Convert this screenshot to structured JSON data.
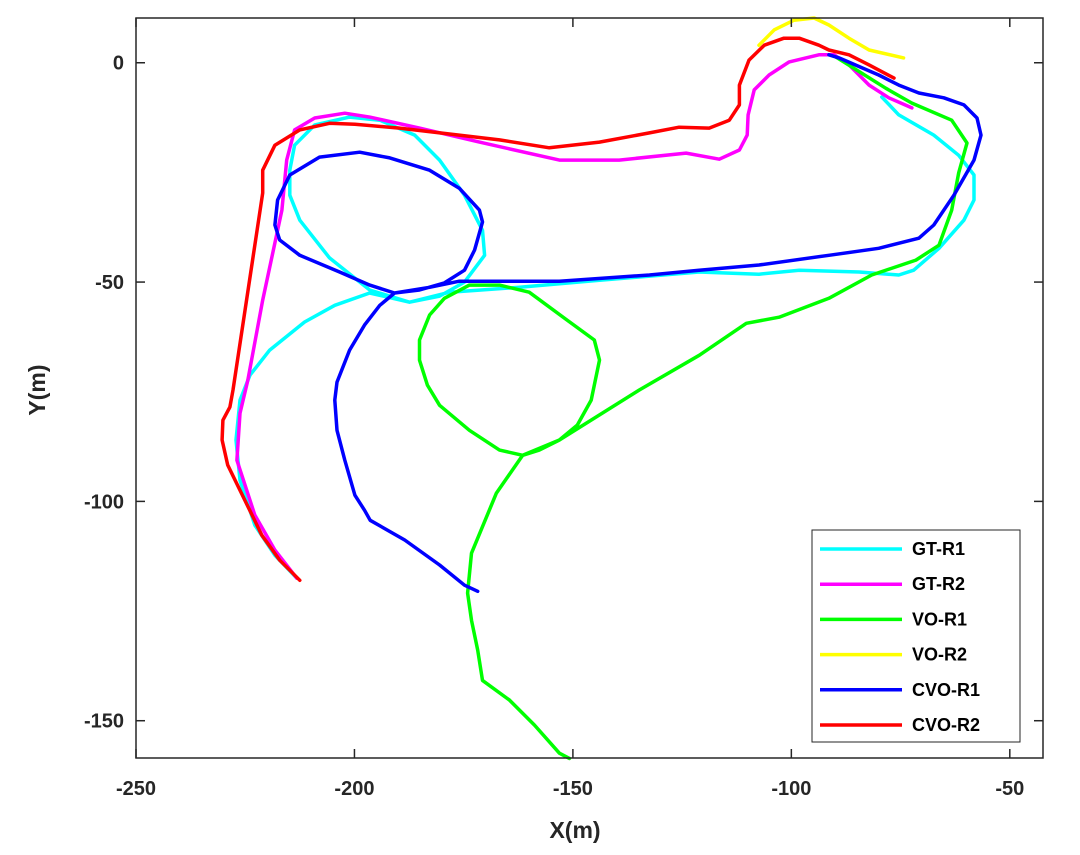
{
  "chart_data": {
    "type": "line",
    "title": "",
    "xlabel": "X(m)",
    "ylabel": "Y(m)",
    "xlim": [
      -250,
      -42.4
    ],
    "ylim": [
      -158.5,
      10.2
    ],
    "xticks": [
      -250,
      -200,
      -150,
      -100,
      -50
    ],
    "yticks": [
      0,
      -50,
      -100,
      -150
    ],
    "xtick_labels": [
      "-250",
      "-200",
      "-150",
      "-100",
      "-50"
    ],
    "ytick_labels": [
      "0",
      "-50",
      "-100",
      "-150"
    ],
    "grid": false,
    "legend_position": "bottom-right",
    "series": [
      {
        "name": "GT-R1",
        "color": "#00ffff",
        "points": [
          [
            -213.2,
            -117.5
          ],
          [
            -218.2,
            -112.3
          ],
          [
            -222.8,
            -105.4
          ],
          [
            -226.2,
            -95.2
          ],
          [
            -227.1,
            -86.0
          ],
          [
            -226.2,
            -76.9
          ],
          [
            -223.9,
            -71.2
          ],
          [
            -219.4,
            -65.5
          ],
          [
            -211.4,
            -59.1
          ],
          [
            -204.5,
            -55.3
          ],
          [
            -196.5,
            -52.5
          ],
          [
            -187.4,
            -54.6
          ],
          [
            -180.5,
            -53.2
          ],
          [
            -174.8,
            -50.0
          ],
          [
            -170.2,
            -43.9
          ],
          [
            -170.7,
            -38.2
          ],
          [
            -174.8,
            -30.2
          ],
          [
            -180.5,
            -22.2
          ],
          [
            -186.2,
            -16.5
          ],
          [
            -194.2,
            -13.1
          ],
          [
            -201.1,
            -12.4
          ],
          [
            -209.1,
            -14.2
          ],
          [
            -213.7,
            -18.8
          ],
          [
            -214.8,
            -24.5
          ],
          [
            -214.8,
            -30.2
          ],
          [
            -212.5,
            -35.9
          ],
          [
            -205.7,
            -44.5
          ],
          [
            -196.5,
            -51.8
          ],
          [
            -187.4,
            -54.6
          ],
          [
            -178.2,
            -52.3
          ],
          [
            -162.2,
            -51.2
          ],
          [
            -143.9,
            -49.6
          ],
          [
            -121.1,
            -47.7
          ],
          [
            -107.4,
            -48.2
          ],
          [
            -98.2,
            -47.3
          ],
          [
            -84.5,
            -47.7
          ],
          [
            -75.4,
            -48.4
          ],
          [
            -72.0,
            -47.3
          ],
          [
            -66.2,
            -42.3
          ],
          [
            -60.5,
            -35.9
          ],
          [
            -58.2,
            -31.3
          ],
          [
            -58.2,
            -25.6
          ],
          [
            -61.7,
            -21.1
          ],
          [
            -67.4,
            -16.5
          ],
          [
            -75.4,
            -11.9
          ],
          [
            -79.3,
            -7.8
          ]
        ]
      },
      {
        "name": "GT-R2",
        "color": "#ff00ff",
        "points": [
          [
            -213.2,
            -117.5
          ],
          [
            -218.2,
            -111.1
          ],
          [
            -222.8,
            -103.1
          ],
          [
            -226.9,
            -90.6
          ],
          [
            -226.2,
            -79.9
          ],
          [
            -224.4,
            -72.4
          ],
          [
            -221.0,
            -54.1
          ],
          [
            -216.6,
            -33.6
          ],
          [
            -215.5,
            -22.2
          ],
          [
            -213.7,
            -15.3
          ],
          [
            -209.1,
            -12.6
          ],
          [
            -202.2,
            -11.5
          ],
          [
            -196.5,
            -12.4
          ],
          [
            -185.1,
            -14.9
          ],
          [
            -171.4,
            -18.1
          ],
          [
            -153.1,
            -22.2
          ],
          [
            -139.4,
            -22.2
          ],
          [
            -124.1,
            -20.6
          ],
          [
            -116.5,
            -22.0
          ],
          [
            -111.9,
            -19.9
          ],
          [
            -110.1,
            -16.5
          ],
          [
            -109.9,
            -11.9
          ],
          [
            -108.5,
            -6.2
          ],
          [
            -105.1,
            -2.8
          ],
          [
            -100.5,
            0.2
          ],
          [
            -93.7,
            1.8
          ],
          [
            -90.2,
            1.8
          ],
          [
            -86.8,
            -0.5
          ],
          [
            -82.2,
            -5.1
          ],
          [
            -77.7,
            -8.0
          ],
          [
            -72.4,
            -10.3
          ]
        ]
      },
      {
        "name": "VO-R1",
        "color": "#00ff00",
        "points": [
          [
            -150.8,
            -158.6
          ],
          [
            -153.1,
            -157.4
          ],
          [
            -158.8,
            -151.0
          ],
          [
            -164.5,
            -145.3
          ],
          [
            -170.7,
            -140.8
          ],
          [
            -171.8,
            -133.9
          ],
          [
            -173.2,
            -127.1
          ],
          [
            -174.1,
            -120.9
          ],
          [
            -173.2,
            -111.8
          ],
          [
            -167.5,
            -98.1
          ],
          [
            -161.5,
            -89.5
          ],
          [
            -166.8,
            -88.3
          ],
          [
            -173.7,
            -83.8
          ],
          [
            -180.5,
            -78.1
          ],
          [
            -183.3,
            -73.5
          ],
          [
            -185.1,
            -67.8
          ],
          [
            -185.1,
            -63.2
          ],
          [
            -182.8,
            -57.5
          ],
          [
            -179.4,
            -53.7
          ],
          [
            -173.7,
            -50.7
          ],
          [
            -166.8,
            -50.7
          ],
          [
            -160.0,
            -52.3
          ],
          [
            -152.0,
            -58.2
          ],
          [
            -145.1,
            -63.2
          ],
          [
            -143.9,
            -67.8
          ],
          [
            -145.8,
            -76.9
          ],
          [
            -149.0,
            -82.6
          ],
          [
            -153.1,
            -86.0
          ],
          [
            -157.7,
            -88.3
          ],
          [
            -161.5,
            -89.5
          ],
          [
            -153.1,
            -86.0
          ],
          [
            -134.8,
            -74.6
          ],
          [
            -121.1,
            -66.7
          ],
          [
            -110.3,
            -59.4
          ],
          [
            -102.8,
            -58.0
          ],
          [
            -91.4,
            -53.7
          ],
          [
            -81.6,
            -48.4
          ],
          [
            -71.5,
            -45.0
          ],
          [
            -66.2,
            -41.6
          ],
          [
            -63.3,
            -33.6
          ],
          [
            -61.7,
            -25.1
          ],
          [
            -59.8,
            -18.3
          ],
          [
            -63.3,
            -13.1
          ],
          [
            -72.4,
            -9.2
          ],
          [
            -78.4,
            -5.8
          ],
          [
            -89.8,
            1.3
          ]
        ]
      },
      {
        "name": "VO-R2",
        "color": "#ffff00",
        "points": [
          [
            -107.4,
            4.0
          ],
          [
            -103.9,
            7.5
          ],
          [
            -99.4,
            9.7
          ],
          [
            -94.8,
            10.2
          ],
          [
            -91.4,
            8.6
          ],
          [
            -86.8,
            5.6
          ],
          [
            -82.2,
            2.9
          ],
          [
            -74.3,
            1.1
          ]
        ]
      },
      {
        "name": "CVO-R1",
        "color": "#0000ff",
        "points": [
          [
            -171.8,
            -120.5
          ],
          [
            -174.8,
            -119.1
          ],
          [
            -180.5,
            -114.5
          ],
          [
            -188.5,
            -108.8
          ],
          [
            -196.4,
            -104.3
          ],
          [
            -197.7,
            -102.0
          ],
          [
            -199.9,
            -98.6
          ],
          [
            -202.2,
            -90.6
          ],
          [
            -204.0,
            -83.8
          ],
          [
            -204.5,
            -76.9
          ],
          [
            -204.0,
            -72.8
          ],
          [
            -201.1,
            -65.5
          ],
          [
            -197.7,
            -59.8
          ],
          [
            -194.2,
            -55.3
          ],
          [
            -190.8,
            -52.5
          ],
          [
            -185.1,
            -51.8
          ],
          [
            -179.4,
            -50.2
          ],
          [
            -174.8,
            -47.3
          ],
          [
            -172.5,
            -42.7
          ],
          [
            -170.7,
            -36.3
          ],
          [
            -171.4,
            -33.6
          ],
          [
            -176.0,
            -28.6
          ],
          [
            -182.8,
            -24.5
          ],
          [
            -191.9,
            -21.7
          ],
          [
            -198.8,
            -20.4
          ],
          [
            -208.0,
            -21.5
          ],
          [
            -214.8,
            -25.6
          ],
          [
            -217.6,
            -31.3
          ],
          [
            -218.2,
            -37.0
          ],
          [
            -217.1,
            -40.4
          ],
          [
            -212.5,
            -43.9
          ],
          [
            -203.4,
            -47.7
          ],
          [
            -196.5,
            -50.7
          ],
          [
            -190.8,
            -52.5
          ],
          [
            -182.8,
            -51.2
          ],
          [
            -176.0,
            -49.8
          ],
          [
            -153.1,
            -49.8
          ],
          [
            -132.5,
            -48.4
          ],
          [
            -121.1,
            -47.3
          ],
          [
            -107.4,
            -46.1
          ],
          [
            -91.4,
            -43.9
          ],
          [
            -80.0,
            -42.3
          ],
          [
            -70.8,
            -40.0
          ],
          [
            -67.4,
            -37.0
          ],
          [
            -62.8,
            -30.2
          ],
          [
            -58.2,
            -22.2
          ],
          [
            -56.6,
            -16.5
          ],
          [
            -57.5,
            -12.6
          ],
          [
            -60.5,
            -9.6
          ],
          [
            -65.1,
            -8.0
          ],
          [
            -70.8,
            -6.9
          ],
          [
            -75.4,
            -5.1
          ],
          [
            -80.0,
            -2.8
          ],
          [
            -89.1,
            1.1
          ],
          [
            -91.4,
            1.8
          ]
        ]
      },
      {
        "name": "CVO-R2",
        "color": "#ff0000",
        "points": [
          [
            -212.5,
            -118.0
          ],
          [
            -217.1,
            -113.4
          ],
          [
            -221.2,
            -107.7
          ],
          [
            -225.1,
            -99.7
          ],
          [
            -229.0,
            -91.7
          ],
          [
            -230.3,
            -86.0
          ],
          [
            -230.1,
            -81.5
          ],
          [
            -228.5,
            -78.5
          ],
          [
            -227.8,
            -74.6
          ],
          [
            -221.0,
            -29.7
          ],
          [
            -221.0,
            -24.5
          ],
          [
            -218.2,
            -18.8
          ],
          [
            -212.5,
            -15.3
          ],
          [
            -205.7,
            -13.8
          ],
          [
            -199.9,
            -14.0
          ],
          [
            -189.7,
            -14.9
          ],
          [
            -166.8,
            -17.6
          ],
          [
            -155.4,
            -19.4
          ],
          [
            -143.9,
            -18.1
          ],
          [
            -132.5,
            -16.0
          ],
          [
            -125.7,
            -14.7
          ],
          [
            -118.8,
            -14.9
          ],
          [
            -114.2,
            -13.1
          ],
          [
            -111.9,
            -9.6
          ],
          [
            -111.9,
            -5.1
          ],
          [
            -109.7,
            0.6
          ],
          [
            -106.2,
            4.0
          ],
          [
            -101.7,
            5.6
          ],
          [
            -98.2,
            5.6
          ],
          [
            -93.7,
            4.0
          ],
          [
            -91.4,
            2.9
          ],
          [
            -86.8,
            1.8
          ],
          [
            -82.2,
            -0.5
          ],
          [
            -76.5,
            -3.5
          ]
        ]
      }
    ]
  }
}
